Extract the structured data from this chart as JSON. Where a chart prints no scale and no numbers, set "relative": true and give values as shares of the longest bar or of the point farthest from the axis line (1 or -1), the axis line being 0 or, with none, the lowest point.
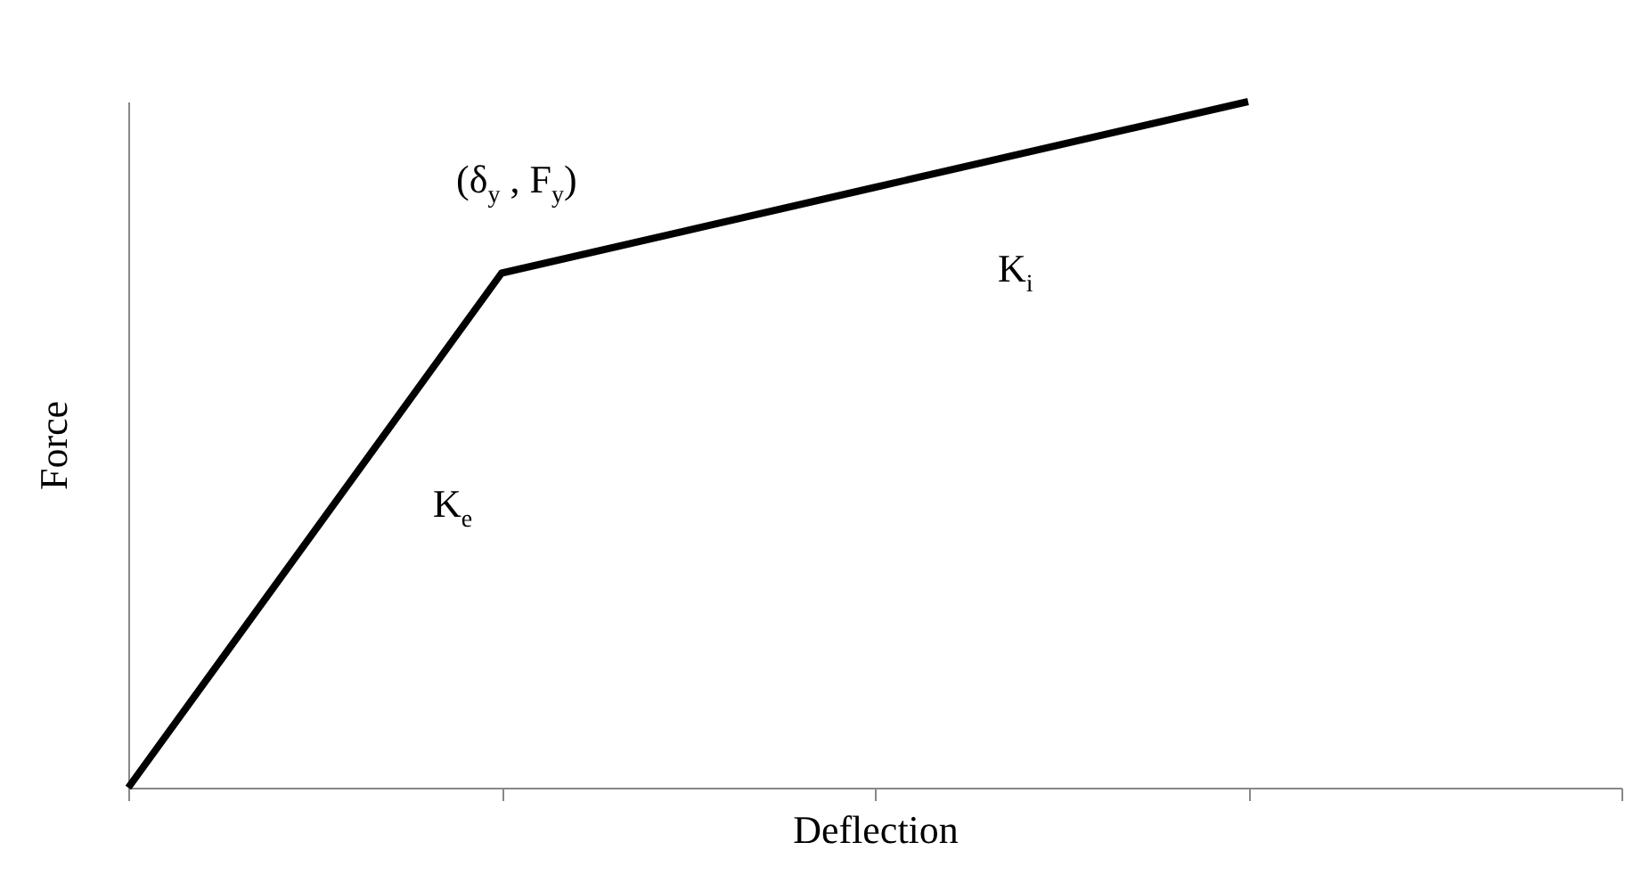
{
  "chart_data": {
    "type": "line",
    "relative": true,
    "xlabel": "Deflection",
    "ylabel": "Force",
    "categories": [
      null,
      null,
      null,
      null,
      null
    ],
    "series": [
      {
        "color": "#000000",
        "values": [
          0,
          0.75,
          0.875,
          1,
          null
        ]
      }
    ],
    "annotations": [
      "(δ$_{y}$ , F$_{y}$)",
      "K$_{i}$",
      "K$_{e}$"
    ],
    "grid": false,
    "marker": "none",
    "line_style": "solid"
  }
}
